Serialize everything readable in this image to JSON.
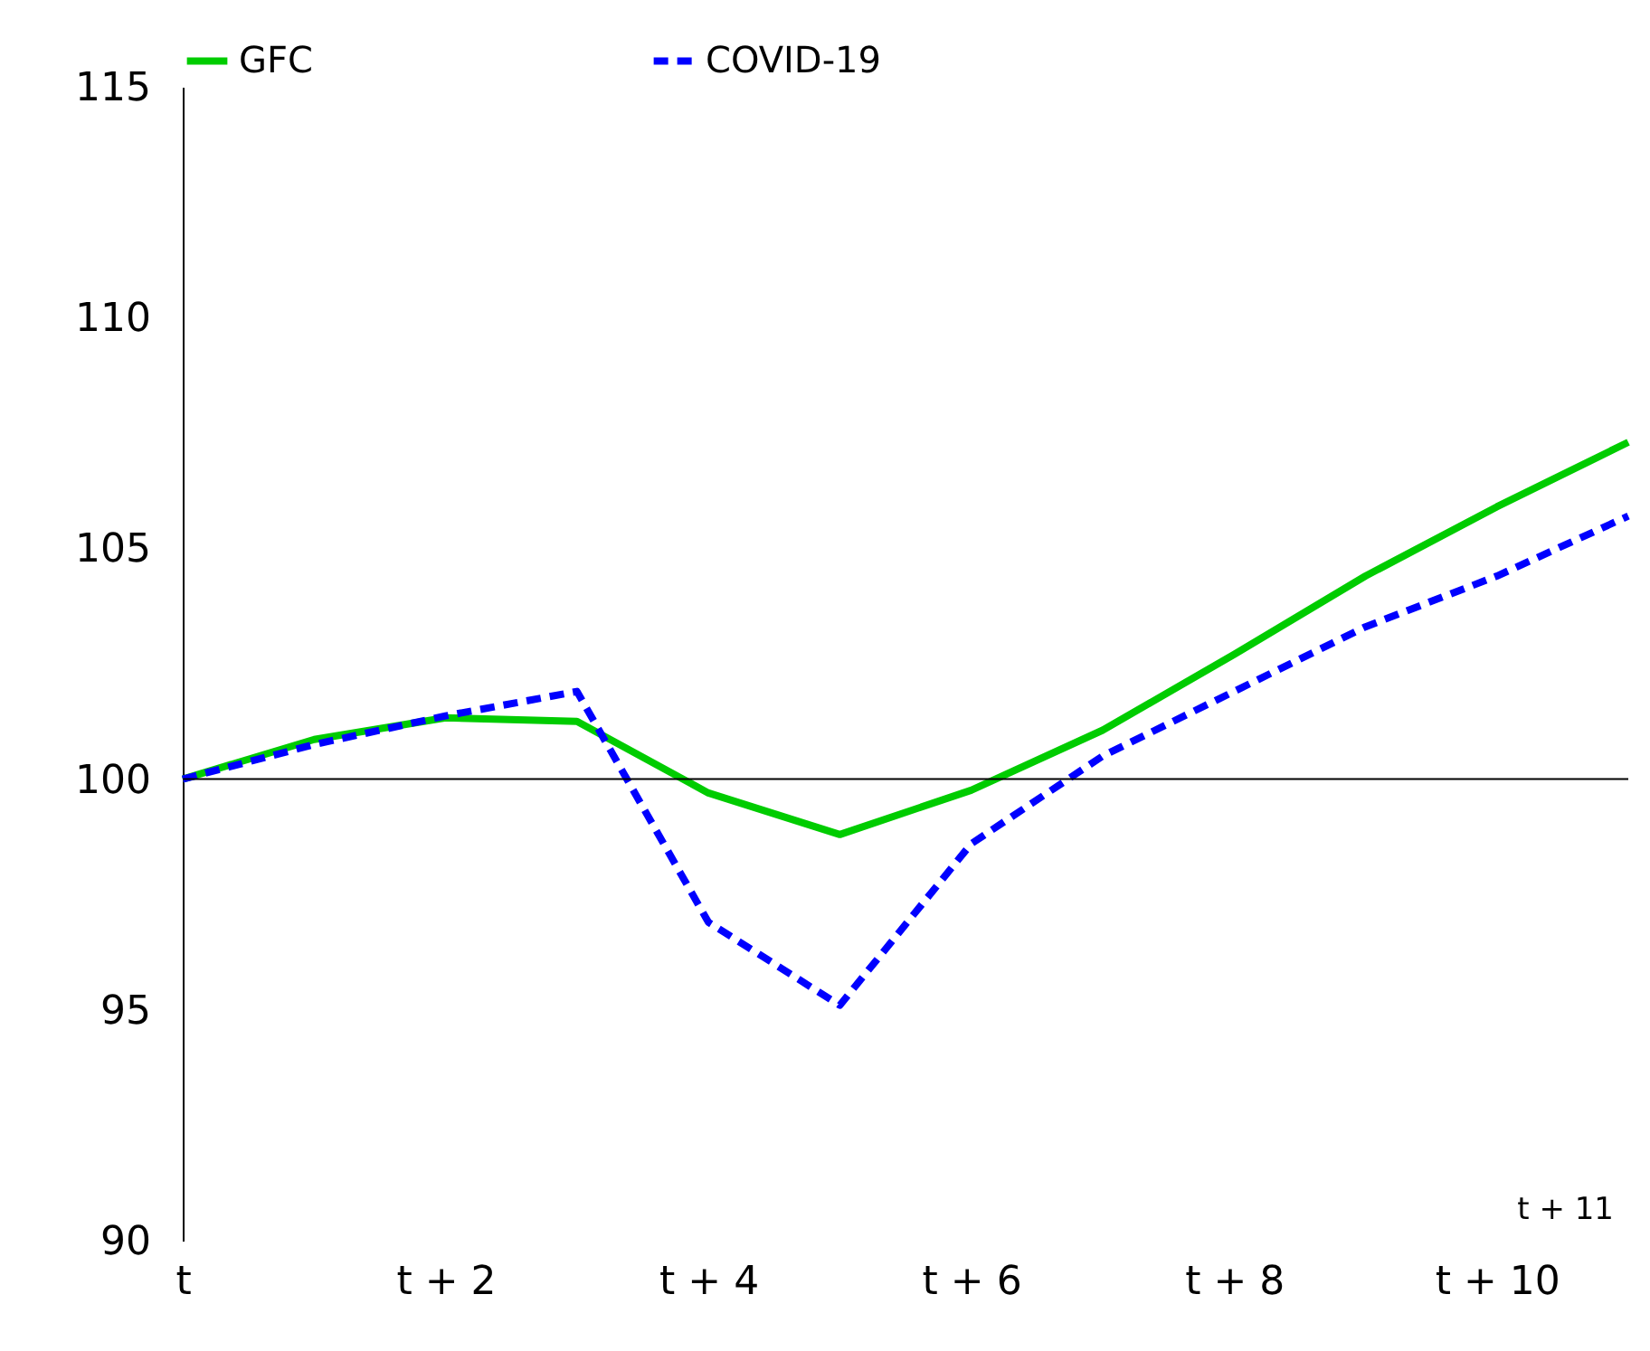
{
  "chart_data": {
    "type": "line",
    "categories": [
      "t",
      null,
      "t + 2",
      null,
      "t + 4",
      null,
      "t + 6",
      null,
      "t + 8",
      null,
      "t + 10",
      null
    ],
    "series": [
      {
        "name": "GFC",
        "color": "#00cc00",
        "line_style": "solid",
        "values": [
          100,
          100.86,
          101.33,
          101.25,
          99.7,
          98.8,
          99.76,
          101.06,
          102.7,
          104.4,
          105.9,
          107.3
        ]
      },
      {
        "name": "COVID-19",
        "color": "#0000ff",
        "line_style": "dashed",
        "values": [
          100,
          100.75,
          101.37,
          101.9,
          96.9,
          95.1,
          98.6,
          100.5,
          101.9,
          103.3,
          104.4,
          105.7
        ]
      }
    ],
    "ylim": [
      90,
      115
    ],
    "yticks": [
      90,
      95,
      100,
      105,
      110,
      115
    ],
    "ref_lines": [
      {
        "axis": "y",
        "value": 100,
        "color": "#000000"
      }
    ],
    "annotations": [
      "t + 11"
    ],
    "legend": "top",
    "grid": false,
    "marker": "none"
  }
}
